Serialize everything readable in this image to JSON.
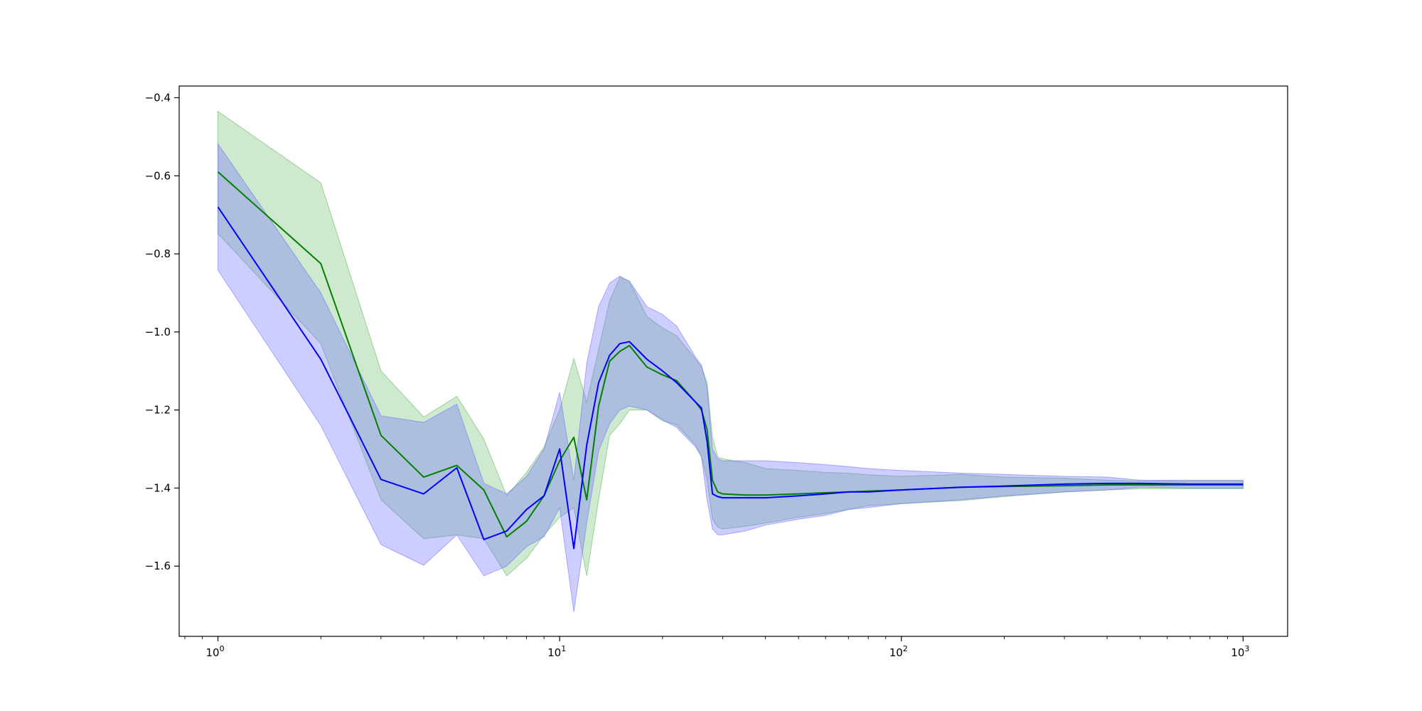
{
  "chart_data": {
    "type": "line",
    "title": "",
    "xlabel": "",
    "ylabel": "",
    "xscale": "log",
    "xlim": [
      0.77,
      1350
    ],
    "ylim": [
      -1.78,
      -0.37
    ],
    "grid": false,
    "legend": "none",
    "x_ticks": [
      {
        "value": 1,
        "base": "10",
        "exp": "0"
      },
      {
        "value": 10,
        "base": "10",
        "exp": "1"
      },
      {
        "value": 100,
        "base": "10",
        "exp": "2"
      },
      {
        "value": 1000,
        "base": "10",
        "exp": "3"
      }
    ],
    "y_ticks": [
      {
        "value": -0.4,
        "label": "−0.4"
      },
      {
        "value": -0.6,
        "label": "−0.6"
      },
      {
        "value": -0.8,
        "label": "−0.8"
      },
      {
        "value": -1.0,
        "label": "−1.0"
      },
      {
        "value": -1.2,
        "label": "−1.2"
      },
      {
        "value": -1.4,
        "label": "−1.4"
      },
      {
        "value": -1.6,
        "label": "−1.6"
      }
    ],
    "series": [
      {
        "color": "#008000",
        "band_color": "#4daf4a",
        "band_opacity": 0.27,
        "x": [
          1,
          2,
          3,
          4,
          5,
          6,
          7,
          8,
          9,
          10,
          11,
          12,
          13,
          14,
          15,
          16,
          18,
          20,
          22,
          25,
          26,
          27,
          28,
          29,
          30,
          35,
          40,
          50,
          60,
          70,
          80,
          100,
          150,
          200,
          300,
          400,
          500,
          700,
          1000
        ],
        "y": [
          -0.59,
          -0.825,
          -1.265,
          -1.372,
          -1.342,
          -1.405,
          -1.525,
          -1.485,
          -1.42,
          -1.33,
          -1.27,
          -1.43,
          -1.19,
          -1.075,
          -1.05,
          -1.035,
          -1.09,
          -1.11,
          -1.125,
          -1.18,
          -1.2,
          -1.25,
          -1.38,
          -1.41,
          -1.415,
          -1.418,
          -1.418,
          -1.415,
          -1.412,
          -1.41,
          -1.408,
          -1.405,
          -1.398,
          -1.396,
          -1.394,
          -1.392,
          -1.392,
          -1.392,
          -1.392
        ],
        "upper": [
          -0.435,
          -0.618,
          -1.1,
          -1.218,
          -1.165,
          -1.275,
          -1.42,
          -1.36,
          -1.295,
          -1.2,
          -1.068,
          -1.18,
          -1.045,
          -0.92,
          -0.86,
          -0.87,
          -0.96,
          -0.99,
          -1.01,
          -1.07,
          -1.09,
          -1.13,
          -1.27,
          -1.32,
          -1.325,
          -1.335,
          -1.35,
          -1.355,
          -1.36,
          -1.362,
          -1.366,
          -1.37,
          -1.365,
          -1.372,
          -1.375,
          -1.38,
          -1.382,
          -1.382,
          -1.382
        ],
        "lower": [
          -0.748,
          -1.03,
          -1.43,
          -1.53,
          -1.52,
          -1.53,
          -1.625,
          -1.58,
          -1.52,
          -1.475,
          -1.45,
          -1.625,
          -1.43,
          -1.265,
          -1.235,
          -1.2,
          -1.2,
          -1.228,
          -1.238,
          -1.29,
          -1.32,
          -1.38,
          -1.48,
          -1.5,
          -1.505,
          -1.498,
          -1.49,
          -1.475,
          -1.465,
          -1.455,
          -1.445,
          -1.44,
          -1.432,
          -1.422,
          -1.41,
          -1.405,
          -1.402,
          -1.402,
          -1.402
        ]
      },
      {
        "color": "#0000ff",
        "band_color": "#6666ff",
        "band_opacity": 0.33,
        "x": [
          1,
          2,
          3,
          4,
          5,
          6,
          7,
          8,
          9,
          10,
          11,
          12,
          13,
          14,
          15,
          16,
          18,
          20,
          22,
          25,
          26,
          27,
          28,
          29,
          30,
          35,
          40,
          50,
          60,
          70,
          80,
          100,
          150,
          200,
          300,
          400,
          500,
          700,
          1000
        ],
        "y": [
          -0.68,
          -1.07,
          -1.378,
          -1.415,
          -1.348,
          -1.532,
          -1.51,
          -1.455,
          -1.42,
          -1.3,
          -1.555,
          -1.29,
          -1.13,
          -1.06,
          -1.03,
          -1.025,
          -1.07,
          -1.1,
          -1.13,
          -1.18,
          -1.195,
          -1.28,
          -1.415,
          -1.422,
          -1.425,
          -1.425,
          -1.425,
          -1.42,
          -1.415,
          -1.41,
          -1.41,
          -1.405,
          -1.398,
          -1.395,
          -1.39,
          -1.388,
          -1.388,
          -1.39,
          -1.39
        ],
        "upper": [
          -0.518,
          -0.9,
          -1.215,
          -1.232,
          -1.185,
          -1.388,
          -1.415,
          -1.37,
          -1.3,
          -1.155,
          -1.38,
          -1.08,
          -0.935,
          -0.875,
          -0.857,
          -0.87,
          -0.935,
          -0.955,
          -0.985,
          -1.065,
          -1.085,
          -1.14,
          -1.3,
          -1.325,
          -1.33,
          -1.33,
          -1.33,
          -1.335,
          -1.34,
          -1.345,
          -1.35,
          -1.355,
          -1.362,
          -1.365,
          -1.37,
          -1.372,
          -1.38,
          -1.38,
          -1.38
        ],
        "lower": [
          -0.842,
          -1.24,
          -1.545,
          -1.598,
          -1.52,
          -1.625,
          -1.6,
          -1.55,
          -1.525,
          -1.45,
          -1.718,
          -1.49,
          -1.305,
          -1.235,
          -1.2,
          -1.19,
          -1.2,
          -1.225,
          -1.245,
          -1.295,
          -1.32,
          -1.43,
          -1.505,
          -1.52,
          -1.52,
          -1.51,
          -1.495,
          -1.48,
          -1.47,
          -1.455,
          -1.45,
          -1.44,
          -1.43,
          -1.42,
          -1.41,
          -1.405,
          -1.398,
          -1.4,
          -1.4
        ]
      }
    ]
  }
}
